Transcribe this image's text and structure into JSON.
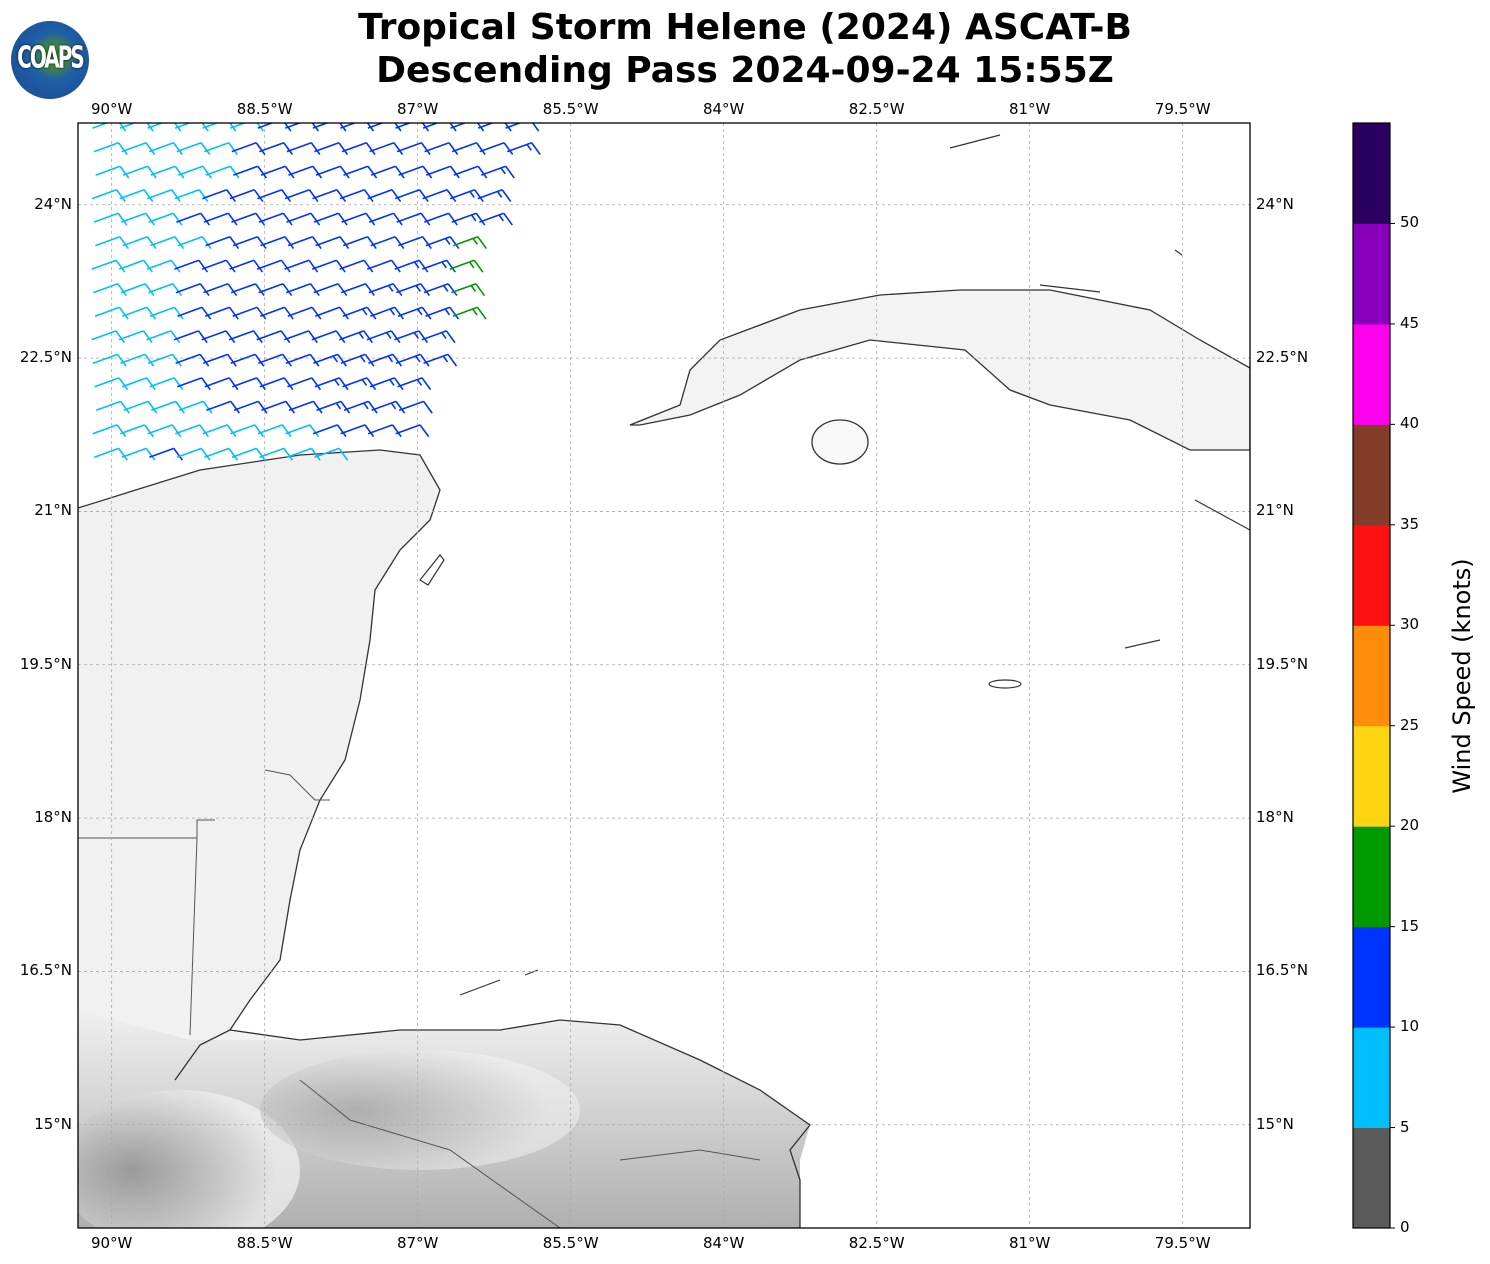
{
  "title_line1": "Tropical Storm Helene (2024) ASCAT-B",
  "title_line2": "Descending Pass 2024-09-24 15:55Z",
  "logo_text": "COAPS",
  "chart_data": {
    "type": "map-wind-barbs",
    "title": "Tropical Storm Helene (2024) ASCAT-B Descending Pass 2024-09-24 15:55Z",
    "lon_range": [
      -90.33,
      -78.84
    ],
    "lat_range": [
      13.99,
      24.8
    ],
    "lon_ticks": [
      -90,
      -88.5,
      -87,
      -85.5,
      -84,
      -82.5,
      -81,
      -79.5
    ],
    "lon_tick_labels": [
      "90°W",
      "88.5°W",
      "87°W",
      "85.5°W",
      "84°W",
      "82.5°W",
      "81°W",
      "79.5°W"
    ],
    "lat_ticks": [
      24,
      22.5,
      21,
      19.5,
      18,
      16.5,
      15
    ],
    "lat_tick_labels": [
      "24°N",
      "22.5°N",
      "21°N",
      "19.5°N",
      "18°N",
      "16.5°N",
      "15°N"
    ],
    "grid": true,
    "barb_direction_from_deg": 70,
    "barb_lon_start": -90.2,
    "barb_lon_step": 0.27,
    "barb_rows": [
      {
        "lat": 24.75,
        "speeds": [
          8,
          8,
          8,
          8,
          8,
          8,
          12,
          12,
          12,
          12,
          12,
          12,
          12,
          12,
          12,
          12
        ]
      },
      {
        "lat": 24.52,
        "speeds": [
          8,
          8,
          8,
          8,
          8,
          12,
          12,
          12,
          12,
          12,
          12,
          12,
          12,
          12,
          12,
          13
        ]
      },
      {
        "lat": 24.29,
        "speeds": [
          8,
          8,
          8,
          8,
          8,
          12,
          12,
          12,
          12,
          12,
          12,
          12,
          12,
          12,
          13
        ]
      },
      {
        "lat": 24.06,
        "speeds": [
          8,
          8,
          8,
          8,
          12,
          12,
          12,
          12,
          12,
          12,
          12,
          12,
          12,
          13,
          13
        ]
      },
      {
        "lat": 23.83,
        "speeds": [
          8,
          8,
          8,
          12,
          12,
          12,
          12,
          12,
          12,
          12,
          12,
          12,
          12,
          13,
          13
        ]
      },
      {
        "lat": 23.6,
        "speeds": [
          8,
          8,
          8,
          8,
          12,
          12,
          12,
          12,
          12,
          12,
          12,
          12,
          13,
          17
        ]
      },
      {
        "lat": 23.37,
        "speeds": [
          8,
          8,
          8,
          12,
          12,
          12,
          12,
          12,
          12,
          12,
          12,
          13,
          13,
          17
        ]
      },
      {
        "lat": 23.14,
        "speeds": [
          8,
          8,
          8,
          12,
          12,
          12,
          12,
          12,
          12,
          12,
          13,
          13,
          13,
          17
        ]
      },
      {
        "lat": 22.91,
        "speeds": [
          8,
          8,
          8,
          12,
          12,
          12,
          12,
          12,
          12,
          13,
          13,
          13,
          13,
          17
        ]
      },
      {
        "lat": 22.68,
        "speeds": [
          8,
          8,
          8,
          12,
          12,
          12,
          12,
          12,
          12,
          13,
          13,
          13,
          13
        ]
      },
      {
        "lat": 22.45,
        "speeds": [
          8,
          8,
          8,
          12,
          12,
          12,
          12,
          12,
          13,
          13,
          13,
          13,
          13
        ]
      },
      {
        "lat": 22.22,
        "speeds": [
          8,
          8,
          8,
          12,
          12,
          12,
          12,
          12,
          13,
          13,
          13,
          13
        ]
      },
      {
        "lat": 21.99,
        "speeds": [
          8,
          8,
          8,
          8,
          12,
          12,
          12,
          12,
          13,
          13,
          13,
          12
        ]
      },
      {
        "lat": 21.76,
        "speeds": [
          8,
          8,
          8,
          8,
          8,
          8,
          8,
          8,
          12,
          12,
          12,
          12
        ]
      },
      {
        "lat": 21.53,
        "speeds": [
          8,
          8,
          12,
          8,
          8,
          8,
          8,
          8,
          8
        ]
      }
    ],
    "colorbar": {
      "label": "Wind Speed (knots)",
      "bounds": [
        0,
        5,
        10,
        15,
        20,
        25,
        30,
        35,
        40,
        45,
        50,
        55
      ],
      "tick_labels": [
        "0",
        "5",
        "10",
        "15",
        "20",
        "25",
        "30",
        "35",
        "40",
        "45",
        "50"
      ],
      "colors": [
        "#5a5a5a",
        "#00bfff",
        "#0033ff",
        "#009900",
        "#ffd511",
        "#ff8c0a",
        "#ff1111",
        "#833c28",
        "#ff00ee",
        "#8800bb",
        "#2a0060"
      ]
    }
  }
}
